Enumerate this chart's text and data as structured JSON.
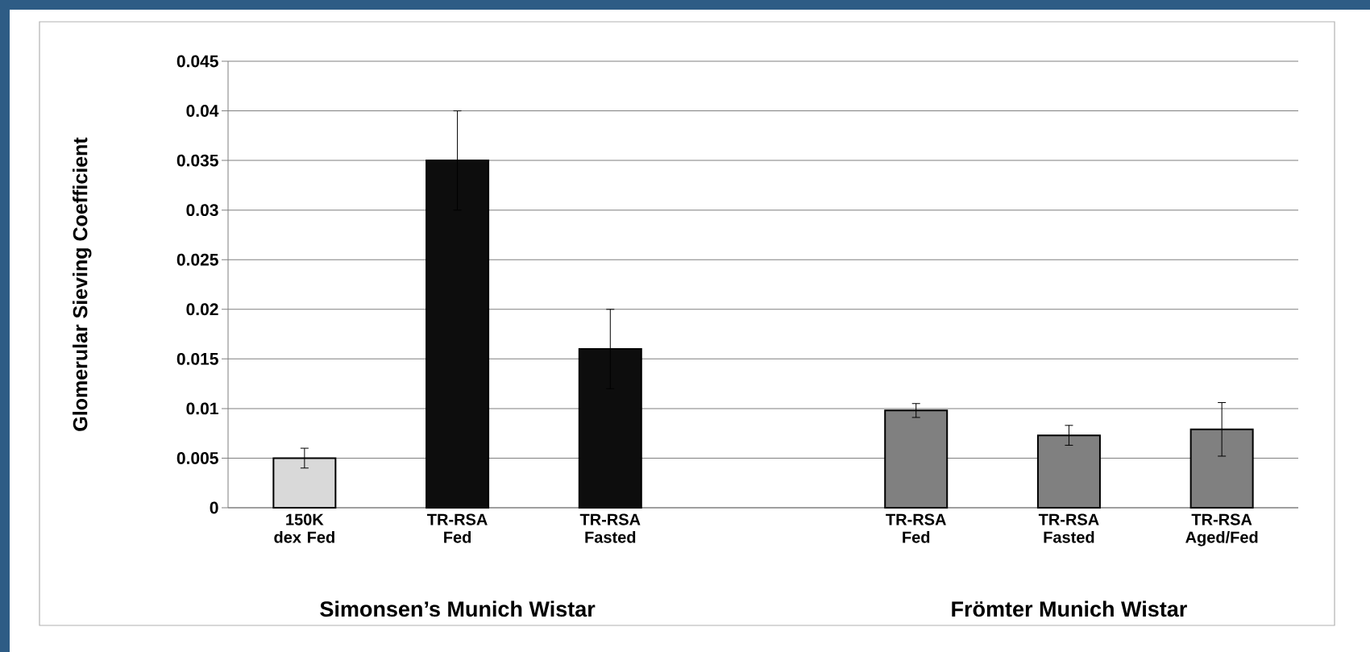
{
  "chart_data": {
    "type": "bar",
    "ylabel": "Glomerular Sieving Coefficient",
    "categories": [
      "150K dex Fed",
      "TR-RSA Fed",
      "TR-RSA Fasted",
      null,
      "TR-RSA Fed",
      "TR-RSA Fasted",
      "TR-RSA Aged/Fed"
    ],
    "values": [
      0.005,
      0.035,
      0.016,
      null,
      0.0098,
      0.0073,
      0.0079
    ],
    "errors": [
      0.001,
      0.005,
      0.004,
      null,
      0.0007,
      0.001,
      0.0027
    ],
    "colors": [
      "#d9d9d9",
      "#0d0d0d",
      "#0d0d0d",
      null,
      "#808080",
      "#808080",
      "#808080"
    ],
    "ylim": [
      0,
      0.045
    ],
    "yticks": [
      0,
      0.005,
      0.01,
      0.015,
      0.02,
      0.025,
      0.03,
      0.035,
      0.04,
      0.045
    ],
    "grid": "y",
    "annotations": [
      "Simonsen’s Munich Wistar",
      "Frömter Munich Wistar"
    ]
  }
}
